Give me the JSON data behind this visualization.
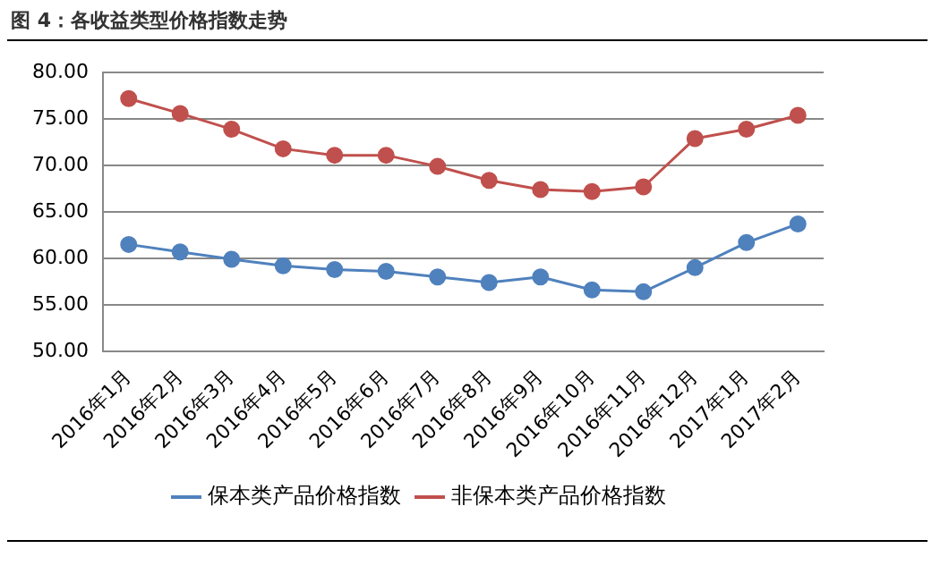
{
  "chart_data": {
    "type": "line",
    "title": "图 4：各收益类型价格指数走势",
    "categories": [
      "2016年1月",
      "2016年2月",
      "2016年3月",
      "2016年4月",
      "2016年5月",
      "2016年6月",
      "2016年7月",
      "2016年8月",
      "2016年9月",
      "2016年10月",
      "2016年11月",
      "2016年12月",
      "2017年1月",
      "2017年2月"
    ],
    "series": [
      {
        "name": "保本类产品价格指数",
        "color": "#4f81bd",
        "values": [
          61.5,
          60.7,
          59.9,
          59.2,
          58.8,
          58.6,
          58.0,
          57.4,
          58.0,
          56.6,
          56.4,
          59.0,
          61.7,
          63.7
        ]
      },
      {
        "name": "非保本类产品价格指数",
        "color": "#c0504d",
        "values": [
          77.2,
          75.6,
          73.9,
          71.8,
          71.1,
          71.1,
          69.9,
          68.4,
          67.4,
          67.2,
          67.7,
          72.9,
          73.9,
          75.4
        ]
      }
    ],
    "ylim": [
      50,
      80
    ],
    "yticks": [
      {
        "value": 50,
        "label": "50.00"
      },
      {
        "value": 55,
        "label": "55.00"
      },
      {
        "value": 60,
        "label": "60.00"
      },
      {
        "value": 65,
        "label": "65.00"
      },
      {
        "value": 70,
        "label": "70.00"
      },
      {
        "value": 75,
        "label": "75.00"
      },
      {
        "value": 80,
        "label": "80.00"
      }
    ],
    "grid": "y",
    "legend": "bottom",
    "marker": "circle",
    "line_style": "solid"
  }
}
